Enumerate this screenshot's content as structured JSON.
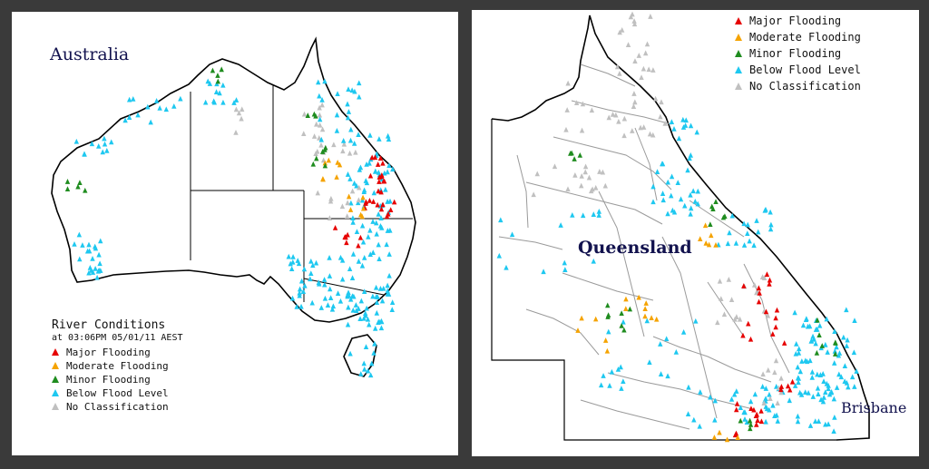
{
  "maps": {
    "australia": {
      "title": "Australia"
    },
    "queensland": {
      "title": "Queensland",
      "city": "Brisbane"
    }
  },
  "legend_left": {
    "heading": "River Conditions",
    "timestamp": "at 03:06PM 05/01/11 AEST"
  },
  "legend_items": [
    {
      "label": "Major Flooding",
      "color": "#e60000"
    },
    {
      "label": "Moderate Flooding",
      "color": "#f5a300"
    },
    {
      "label": "Minor Flooding",
      "color": "#1f8c1f"
    },
    {
      "label": "Below Flood Level",
      "color": "#1ec8f0"
    },
    {
      "label": "No Classification",
      "color": "#c0c0c0"
    }
  ]
}
